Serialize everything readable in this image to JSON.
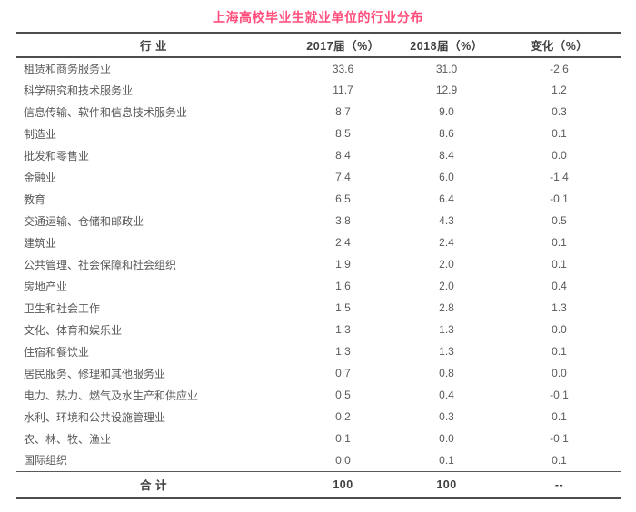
{
  "title": "上海高校毕业生就业单位的行业分布",
  "chart_data": {
    "type": "table",
    "title": "上海高校毕业生就业单位的行业分布",
    "columns": [
      "行 业",
      "2017届（%）",
      "2018届（%）",
      "变化（%）"
    ],
    "rows": [
      [
        "租赁和商务服务业",
        "33.6",
        "31.0",
        "-2.6"
      ],
      [
        "科学研究和技术服务业",
        "11.7",
        "12.9",
        "1.2"
      ],
      [
        "信息传输、软件和信息技术服务业",
        "8.7",
        "9.0",
        "0.3"
      ],
      [
        "制造业",
        "8.5",
        "8.6",
        "0.1"
      ],
      [
        "批发和零售业",
        "8.4",
        "8.4",
        "0.0"
      ],
      [
        "金融业",
        "7.4",
        "6.0",
        "-1.4"
      ],
      [
        "教育",
        "6.5",
        "6.4",
        "-0.1"
      ],
      [
        "交通运输、仓储和邮政业",
        "3.8",
        "4.3",
        "0.5"
      ],
      [
        "建筑业",
        "2.4",
        "2.4",
        "0.1"
      ],
      [
        "公共管理、社会保障和社会组织",
        "1.9",
        "2.0",
        "0.1"
      ],
      [
        "房地产业",
        "1.6",
        "2.0",
        "0.4"
      ],
      [
        "卫生和社会工作",
        "1.5",
        "2.8",
        "1.3"
      ],
      [
        "文化、体育和娱乐业",
        "1.3",
        "1.3",
        "0.0"
      ],
      [
        "住宿和餐饮业",
        "1.3",
        "1.3",
        "0.1"
      ],
      [
        "居民服务、修理和其他服务业",
        "0.7",
        "0.8",
        "0.0"
      ],
      [
        "电力、热力、燃气及水生产和供应业",
        "0.5",
        "0.4",
        "-0.1"
      ],
      [
        "水利、环境和公共设施管理业",
        "0.2",
        "0.3",
        "0.1"
      ],
      [
        "农、林、牧、渔业",
        "0.1",
        "0.0",
        "-0.1"
      ],
      [
        "国际组织",
        "0.0",
        "0.1",
        "0.1"
      ]
    ],
    "total_row": [
      "合 计",
      "100",
      "100",
      "--"
    ]
  },
  "colors": {
    "title_pink": "#FF4E7B",
    "header_text": "#404040",
    "body_text": "#595959",
    "rule_dark": "#4D4D4D"
  }
}
